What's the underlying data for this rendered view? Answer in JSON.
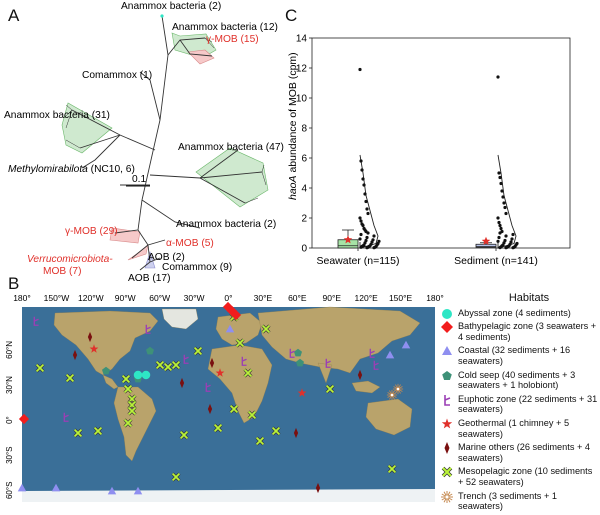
{
  "panels": {
    "a": "A",
    "b": "B",
    "c": "C"
  },
  "tree": {
    "labels": {
      "anammox_2_top": "Anammox bacteria (2)",
      "anammox_12": "Anammox bacteria (12)",
      "gamma_mob_15": "γ-MOB (15)",
      "comammox_1": "Comammox (1)",
      "anammox_31": "Anammox bacteria (31)",
      "methylomirabilota_italic": "Methylomirabilota",
      "methylomirabilota_rest": " (NC10, 6)",
      "anammox_47": "Anammox bacteria (47)",
      "scale": "0.1",
      "anammox_2_bottom": "Anammox bacteria (2)",
      "gamma_mob_29": "γ-MOB (29)",
      "alpha_mob_5": "α-MOB (5)",
      "verruco_line1": "Verrucomicrobiota-",
      "verruco_line2": "MOB (7)",
      "aob_2": "AOB (2)",
      "comammox_9": "Comammox (9)",
      "aob_17": "AOB (17)"
    }
  },
  "chart_data": {
    "type": "scatter",
    "categories": [
      "Seawater (n=115)",
      "Sediment (n=141)"
    ],
    "ylabel_italic": "haoA",
    "ylabel_rest": " abundance of MOB (cpm)",
    "ylim": [
      0,
      14
    ],
    "yticks": [
      0,
      2,
      4,
      6,
      8,
      10,
      12,
      14
    ],
    "boxes": [
      {
        "category": "Seawater (n=115)",
        "q1": 0.0,
        "median": 0.15,
        "q3": 0.55,
        "whisker_low": 0.0,
        "whisker_high": 1.2,
        "mean": 0.55
      },
      {
        "category": "Sediment (n=141)",
        "q1": 0.05,
        "median": 0.1,
        "q3": 0.25,
        "whisker_low": 0.0,
        "whisker_high": 0.35,
        "mean": 0.45
      }
    ],
    "points": [
      {
        "category": "Seawater (n=115)",
        "values": [
          11.9,
          5.8,
          5.2,
          4.6,
          4.2,
          3.6,
          3.1,
          2.6,
          2.3,
          2.0,
          1.8,
          1.6,
          1.5,
          1.3,
          1.2,
          1.1,
          1.0,
          0.9,
          0.8,
          0.7,
          0.6,
          0.55,
          0.5,
          0.45,
          0.4,
          0.35,
          0.3,
          0.25,
          0.2,
          0.2,
          0.15,
          0.15,
          0.1,
          0.1,
          0.1,
          0.05,
          0.05,
          0.05,
          0.02,
          0.02
        ]
      },
      {
        "category": "Sediment (n=141)",
        "values": [
          11.4,
          5.0,
          4.7,
          4.3,
          3.8,
          3.4,
          3.0,
          2.7,
          2.3,
          2.0,
          1.7,
          1.5,
          1.3,
          1.1,
          1.0,
          0.9,
          0.8,
          0.7,
          0.6,
          0.5,
          0.45,
          0.4,
          0.35,
          0.3,
          0.25,
          0.2,
          0.2,
          0.15,
          0.15,
          0.1,
          0.1,
          0.08,
          0.05,
          0.05,
          0.03,
          0.02,
          0.02
        ]
      }
    ]
  },
  "map": {
    "top_ticks": [
      "180°",
      "150°W",
      "120°W",
      "90°W",
      "60°W",
      "30°W",
      "0°",
      "30°E",
      "60°E",
      "90°E",
      "120°E",
      "150°E",
      "180°"
    ],
    "left_ticks": [
      "60°N",
      "30°N",
      "0°",
      "30°S",
      "60°S"
    ],
    "colors": {
      "ocean": "#3a6f98",
      "land": "#b9a36b",
      "ice": "#eef2f4"
    }
  },
  "legend": {
    "title": "Habitats",
    "items": [
      {
        "icon": "circle-icon",
        "color": "#2ee6c5",
        "label": "Abyssal zone (4 sediments)"
      },
      {
        "icon": "diamond-icon",
        "color": "#f21d1d",
        "label": "Bathypelagic zone (3 seawaters + 4 sediments)"
      },
      {
        "icon": "triangle-icon",
        "color": "#8f8ff0",
        "label": "Coastal (32 sediments + 16 seawaters)"
      },
      {
        "icon": "pentagon-icon",
        "color": "#3e9178",
        "label": "Cold seep (40 sediments + 3 seawaters + 1 holobiont)"
      },
      {
        "icon": "bracket-icon",
        "color": "#9b3fb5",
        "label": "Euphotic zone (22 sediments + 31 seawaters)"
      },
      {
        "icon": "star-icon",
        "color": "#e0312b",
        "label": "Geothermal (1 chimney + 5 seawaters)"
      },
      {
        "icon": "thin-diamond-icon",
        "color": "#7a1010",
        "label": "Marine others (26 sediments + 4 seawaters)"
      },
      {
        "icon": "x-icon",
        "color": "#b9f23a",
        "label": "Mesopelagic zone (10 sediments + 52 seawaters)"
      },
      {
        "icon": "burst-icon",
        "color": "#c58a50",
        "label": "Trench (3 sediments + 1 seawaters)"
      }
    ]
  }
}
